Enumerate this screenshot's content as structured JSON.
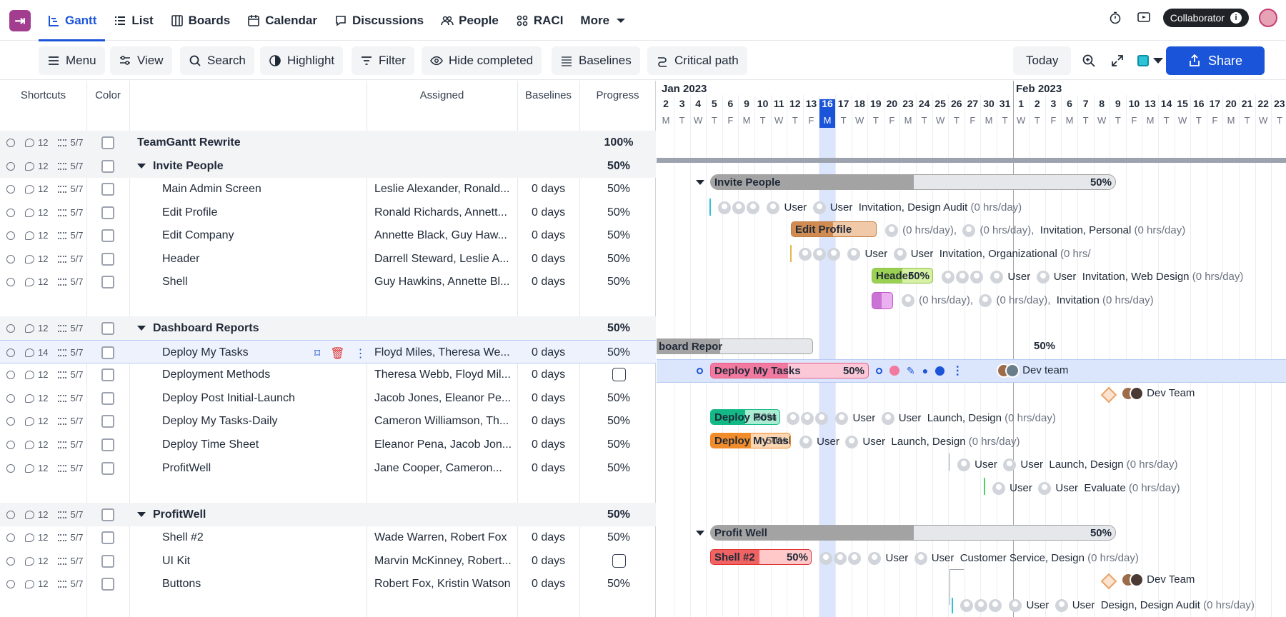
{
  "nav": {
    "tabs": [
      {
        "label": "Gantt",
        "icon": "gantt-icon",
        "active": true
      },
      {
        "label": "List",
        "icon": "list-icon"
      },
      {
        "label": "Boards",
        "icon": "boards-icon"
      },
      {
        "label": "Calendar",
        "icon": "calendar-icon"
      },
      {
        "label": "Discussions",
        "icon": "discussions-icon"
      },
      {
        "label": "People",
        "icon": "people-icon"
      },
      {
        "label": "RACI",
        "icon": "raci-icon"
      },
      {
        "label": "More",
        "icon": "chevron-down-icon"
      }
    ],
    "role": "Collaborator",
    "accent": "#1a54d9"
  },
  "toolbar": {
    "menu": "Menu",
    "view": "View",
    "search": "Search",
    "highlight": "Highlight",
    "filter": "Filter",
    "hide_completed": "Hide completed",
    "baselines": "Baselines",
    "critical_path": "Critical path",
    "today": "Today",
    "share": "Share"
  },
  "columns": {
    "shortcuts": "Shortcuts",
    "color": "Color",
    "assigned": "Assigned",
    "baselines": "Baselines",
    "progress": "Progress"
  },
  "rows": [
    {
      "name": "TeamGantt Rewrite",
      "type": "project",
      "comments": "12",
      "subtasks": "5/7",
      "progress": "100%"
    },
    {
      "name": "Invite People",
      "type": "group",
      "comments": "12",
      "subtasks": "5/7",
      "progress": "50%"
    },
    {
      "name": "Main Admin Screen",
      "comments": "12",
      "subtasks": "5/7",
      "assigned": "Leslie Alexander, Ronald...",
      "baseline": "0 days",
      "progress": "50%"
    },
    {
      "name": "Edit Profile",
      "comments": "12",
      "subtasks": "5/7",
      "assigned": "Ronald Richards, Annett...",
      "baseline": "0 days",
      "progress": "50%"
    },
    {
      "name": "Edit Company",
      "comments": "12",
      "subtasks": "5/7",
      "assigned": "Annette Black, Guy Haw...",
      "baseline": "0 days",
      "progress": "50%"
    },
    {
      "name": "Header",
      "comments": "12",
      "subtasks": "5/7",
      "assigned": "Darrell Steward, Leslie A...",
      "baseline": "0 days",
      "progress": "50%"
    },
    {
      "name": "Shell",
      "comments": "12",
      "subtasks": "5/7",
      "assigned": "Guy Hawkins, Annette Bl...",
      "baseline": "0 days",
      "progress": "50%"
    },
    {
      "name": "Dashboard Reports",
      "type": "group",
      "comments": "12",
      "subtasks": "5/7",
      "progress": "50%"
    },
    {
      "name": "Deploy My Tasks",
      "selected": true,
      "comments": "14",
      "subtasks": "5/7",
      "assigned": "Floyd Miles, Theresa We...",
      "baseline": "0 days",
      "progress": "50%"
    },
    {
      "name": "Deployment Methods",
      "comments": "12",
      "subtasks": "5/7",
      "assigned": "Theresa Webb, Floyd Mil...",
      "baseline": "0 days",
      "progress": ""
    },
    {
      "name": "Deploy Post Initial-Launch",
      "comments": "12",
      "subtasks": "5/7",
      "assigned": "Jacob Jones, Eleanor Pe...",
      "baseline": "0 days",
      "progress": "50%"
    },
    {
      "name": "Deploy My Tasks-Daily",
      "comments": "12",
      "subtasks": "5/7",
      "assigned": "Cameron Williamson, Th...",
      "baseline": "0 days",
      "progress": "50%"
    },
    {
      "name": "Deploy Time Sheet",
      "comments": "12",
      "subtasks": "5/7",
      "assigned": "Eleanor Pena, Jacob Jon...",
      "baseline": "0 days",
      "progress": "50%"
    },
    {
      "name": "ProfitWell",
      "comments": "12",
      "subtasks": "5/7",
      "assigned": "Jane Cooper, Cameron...",
      "baseline": "0 days",
      "progress": "50%"
    },
    {
      "name": "ProfitWell",
      "type": "group",
      "comments": "12",
      "subtasks": "5/7",
      "progress": "50%"
    },
    {
      "name": "Shell #2",
      "comments": "12",
      "subtasks": "5/7",
      "assigned": "Wade Warren, Robert Fox",
      "baseline": "0 days",
      "progress": "50%"
    },
    {
      "name": "UI Kit",
      "comments": "12",
      "subtasks": "5/7",
      "assigned": "Marvin McKinney, Robert...",
      "baseline": "0 days",
      "progress": ""
    },
    {
      "name": "Buttons",
      "comments": "12",
      "subtasks": "5/7",
      "assigned": "Robert Fox, Kristin Watson",
      "baseline": "0 days",
      "progress": "50%"
    }
  ],
  "timeline": {
    "months": [
      "Jan 2023",
      "Feb 2023"
    ],
    "days": [
      "2",
      "3",
      "4",
      "5",
      "6",
      "9",
      "10",
      "11",
      "12",
      "13",
      "16",
      "17",
      "18",
      "19",
      "20",
      "23",
      "24",
      "25",
      "26",
      "27",
      "30",
      "31",
      "1",
      "2",
      "3",
      "6",
      "7",
      "8",
      "9",
      "10",
      "13",
      "14",
      "15",
      "16",
      "17",
      "20",
      "21",
      "22",
      "23"
    ],
    "dows": [
      "M",
      "T",
      "W",
      "T",
      "F",
      "M",
      "T",
      "W",
      "T",
      "F",
      "M",
      "T",
      "W",
      "T",
      "F",
      "M",
      "T",
      "W",
      "T",
      "F",
      "M",
      "T",
      "W",
      "T",
      "F",
      "M",
      "T",
      "W",
      "T",
      "F",
      "M",
      "T",
      "W",
      "T",
      "F",
      "M",
      "T",
      "W",
      "T"
    ],
    "today_index": 10
  },
  "gantt": {
    "invite_bar": "Invite People",
    "invite_pct": "50%",
    "dash_bar": "board Repor",
    "dash_pct": "50%",
    "deploy_bar": "Deploy My Tasks",
    "deploy_pct": "50%",
    "profit_bar": "Profit Well",
    "profit_pct": "50%",
    "edit_profile": "Edit Profile",
    "header": "Header",
    "header_pct": "50%",
    "post_launch": "Deploy Post I",
    "post_pct": "50%",
    "daily": "Deploy My Task",
    "daily_pct": "50%",
    "shell2": "Shell #2",
    "shell2_pct": "50%",
    "user": "User",
    "dev_team": "Dev team",
    "dev_team2": "Dev Team",
    "l_main": "Invitation, Design Audit",
    "l_edit": "Invitation, Personal",
    "l_company": "Invitation, Organizational",
    "l_header": "Invitation, Web Design",
    "l_shell": "Invitation",
    "l_post": "Launch, Design",
    "l_daily": "Launch, Design",
    "l_sheet": "Launch, Design",
    "l_profit": "Evaluate",
    "l_shell2": "Customer Service, Design",
    "l_buttons": "Design, Design Audit",
    "hrs": "(0 hrs/day)",
    "hrs_c": "(0 hrs/day),",
    "hrs_cut": "(0 hrs/"
  }
}
